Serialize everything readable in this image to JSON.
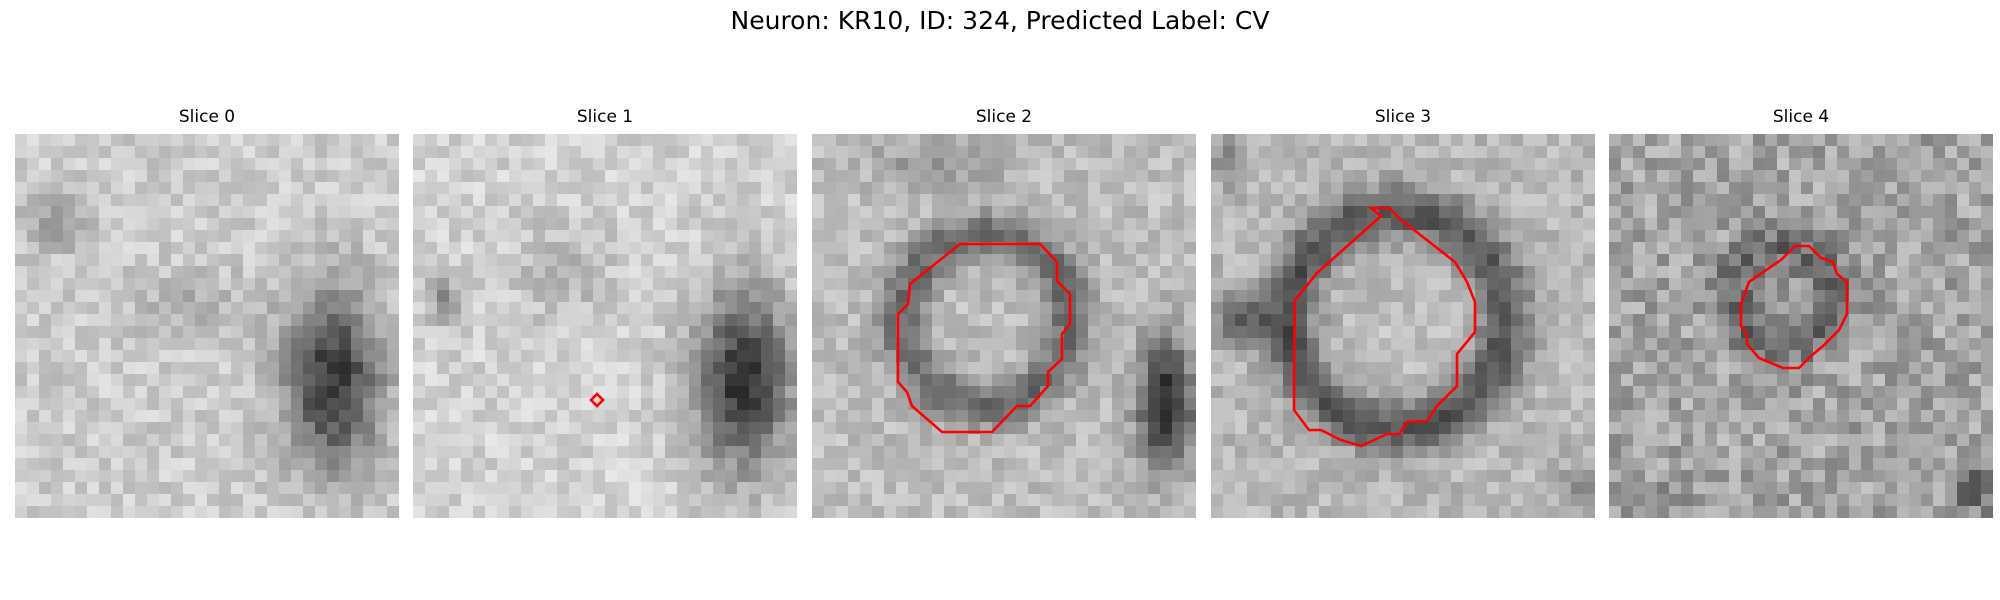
{
  "figure": {
    "title": "Neuron: KR10, ID: 324, Predicted Label: CV"
  },
  "panels": [
    {
      "title": "Slice 0",
      "has_contour": false
    },
    {
      "title": "Slice 1",
      "has_contour": true
    },
    {
      "title": "Slice 2",
      "has_contour": true
    },
    {
      "title": "Slice 3",
      "has_contour": true
    },
    {
      "title": "Slice 4",
      "has_contour": true
    }
  ],
  "style": {
    "contour_color": "#ff0000",
    "colormap": "gray"
  }
}
